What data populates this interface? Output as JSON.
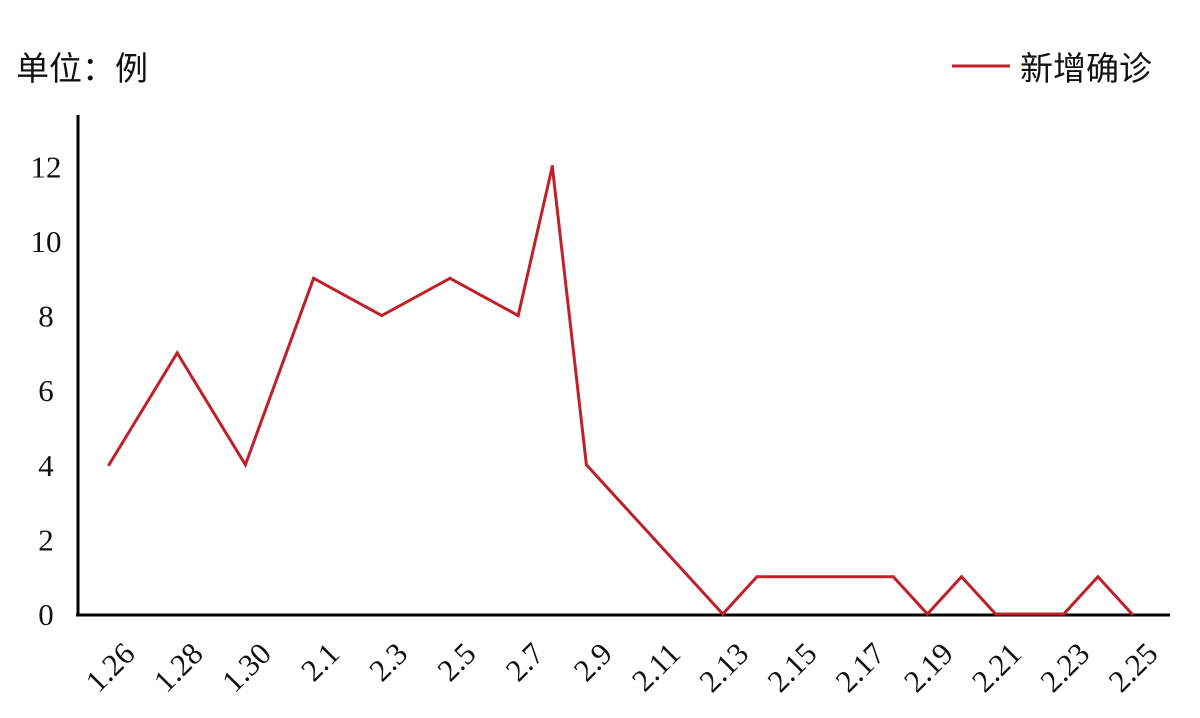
{
  "chart_data": {
    "type": "line",
    "unit_label": "单位：例",
    "legend": {
      "position": "top-right",
      "entries": [
        "新增确诊"
      ]
    },
    "x_tick_labels": [
      "1.26",
      "1.28",
      "1.30",
      "2.1",
      "2.3",
      "2.5",
      "2.7",
      "2.9",
      "2.11",
      "2.13",
      "2.15",
      "2.17",
      "2.19",
      "2.21",
      "2.23",
      "2.25"
    ],
    "y_tick_labels": [
      "0",
      "2",
      "4",
      "6",
      "8",
      "10",
      "12"
    ],
    "ylim": [
      0,
      13
    ],
    "grid": false,
    "colors": {
      "series": "#c0202a",
      "axis": "#000000"
    },
    "series": [
      {
        "name": "新增确诊",
        "points": [
          {
            "x": "1.26",
            "y": 4
          },
          {
            "x": "1.28",
            "y": 7
          },
          {
            "x": "1.30",
            "y": 4
          },
          {
            "x": "2.1",
            "y": 9
          },
          {
            "x": "2.3",
            "y": 8
          },
          {
            "x": "2.5",
            "y": 9
          },
          {
            "x": "2.7",
            "y": 8
          },
          {
            "x": "2.8",
            "y": 12
          },
          {
            "x": "2.9",
            "y": 4
          },
          {
            "x": "2.11",
            "y": 2
          },
          {
            "x": "2.13",
            "y": 0
          },
          {
            "x": "2.14",
            "y": 1
          },
          {
            "x": "2.18",
            "y": 1
          },
          {
            "x": "2.19",
            "y": 0
          },
          {
            "x": "2.20",
            "y": 1
          },
          {
            "x": "2.21",
            "y": 0
          },
          {
            "x": "2.23",
            "y": 0
          },
          {
            "x": "2.24",
            "y": 1
          },
          {
            "x": "2.25",
            "y": 0
          }
        ]
      }
    ]
  }
}
